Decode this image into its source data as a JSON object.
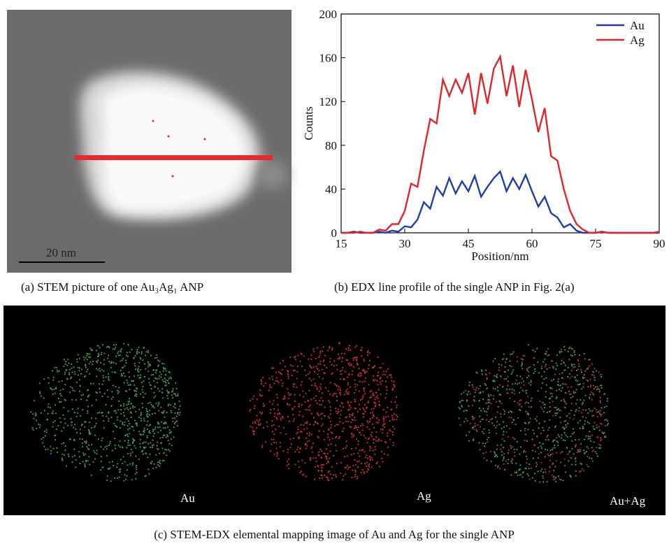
{
  "chart_data": {
    "type": "line",
    "x_label": "Position/nm",
    "y_label": "Counts",
    "x": [
      15,
      16.5,
      18,
      19.5,
      21,
      22.5,
      24,
      25.5,
      27,
      28.5,
      30,
      31.5,
      33,
      34.5,
      36,
      37.5,
      39,
      40.5,
      42,
      43.5,
      45,
      46.5,
      48,
      49.5,
      51,
      52.5,
      54,
      55.5,
      57,
      58.5,
      60,
      61.5,
      63,
      64.5,
      66,
      67.5,
      69,
      70.5,
      72,
      73.5,
      75,
      76.5,
      78,
      79.5,
      81,
      82.5,
      84,
      85.5,
      87,
      88.5,
      90
    ],
    "series": [
      {
        "name": "Au",
        "color": "#1f3ea8",
        "values": [
          0,
          0,
          1,
          0,
          0,
          0,
          1,
          0,
          2,
          1,
          6,
          5,
          12,
          28,
          22,
          42,
          34,
          50,
          36,
          47,
          38,
          52,
          33,
          42,
          50,
          56,
          38,
          50,
          40,
          53,
          38,
          24,
          33,
          18,
          14,
          5,
          8,
          2,
          0,
          0,
          0,
          1,
          0,
          0,
          0,
          0,
          0,
          0,
          0,
          0,
          0
        ]
      },
      {
        "name": "Ag",
        "color": "#e0262a",
        "values": [
          0,
          0,
          0,
          1,
          0,
          0,
          3,
          2,
          8,
          8,
          20,
          45,
          42,
          75,
          104,
          100,
          140,
          125,
          140,
          128,
          146,
          108,
          146,
          118,
          150,
          161,
          125,
          153,
          115,
          149,
          122,
          92,
          114,
          70,
          66,
          40,
          20,
          8,
          3,
          0,
          0,
          1,
          0,
          0,
          0,
          0,
          0,
          0,
          0,
          0,
          1
        ]
      }
    ],
    "xlim": [
      15,
      90
    ],
    "ylim": [
      0,
      200
    ],
    "xticks": [
      15,
      30,
      45,
      60,
      75,
      90
    ],
    "yticks": [
      0,
      40,
      80,
      120,
      160,
      200
    ],
    "legend": "upper right"
  },
  "panel_a": {
    "scale_bar": "20 nm",
    "caption": "(a) STEM picture of one Au₃Ag₁ ANP"
  },
  "panel_b": {
    "caption": "(b) EDX line profile of the single ANP in Fig. 2(a)"
  },
  "panel_c": {
    "labels": [
      "Au",
      "Ag",
      "Au+Ag"
    ],
    "caption": "(c) STEM-EDX elemental mapping image of Au and Ag for the single ANP"
  }
}
